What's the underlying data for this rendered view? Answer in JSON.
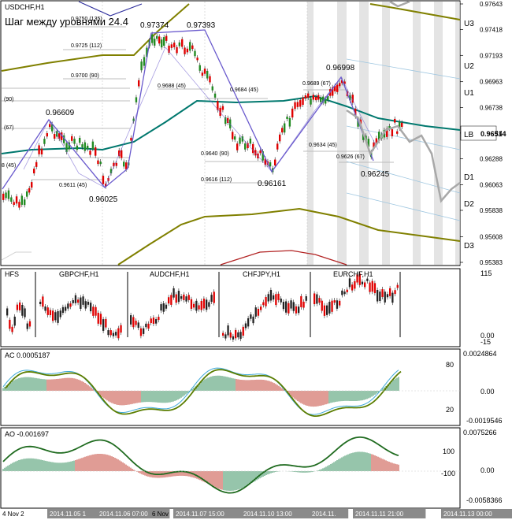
{
  "header": {
    "symbol": "USDCHF,H1",
    "level_step_text": "Шаг между уровнями 24.4"
  },
  "main_chart": {
    "price_axis": [
      "0.97643",
      "0.97418",
      "0.97193",
      "0.96963",
      "0.96738",
      "0.96514",
      "0.96288",
      "0.96063",
      "0.95838",
      "0.95608",
      "0.95383"
    ],
    "current_price": "0.96514",
    "level_labels": [
      "U3",
      "U2",
      "U1",
      "LB",
      "D1",
      "D2",
      "D3"
    ],
    "swing_labels": [
      "0.97374",
      "0.97393",
      "0.96609",
      "0.96025",
      "0.96161",
      "0.96998",
      "0.96245"
    ],
    "fib_labels": [
      "0.9750 (135)",
      "0.9725 (112)",
      "0.9700 (90)",
      "0.9688 (45)",
      "0.9684 (45)",
      "0.9640 (90)",
      "0.9616 (112)",
      "0.9611 (45)",
      "0.9689 (67)",
      "0.9634 (45)",
      "0.9626 (67)",
      "(90)",
      "(67)",
      "8 (45)"
    ]
  },
  "hfs_panel": {
    "title": "HFS",
    "pair_labels": [
      "GBPCHF,H1",
      "AUDCHF,H1",
      "CHFJPY,H1",
      "EURCHF,H1"
    ],
    "axis": [
      "115",
      "0.00",
      "-15"
    ]
  },
  "ac_panel": {
    "title": "AC 0.0005187",
    "axis_right": [
      "0.0024864",
      "0.00",
      "-0.0019546"
    ],
    "axis_left": [
      "80",
      "20"
    ]
  },
  "ao_panel": {
    "title": "AO -0.001697",
    "axis_right": [
      "0.0075266",
      "0.00",
      "-0.0058366"
    ],
    "axis_left": [
      "100",
      "-100"
    ]
  },
  "time_axis": {
    "labels": [
      "4 Nov 2",
      "2014.11.05 1",
      "2014.11.06 07:00",
      "6 Nov",
      "2014.11.07 15:00",
      "2014.11.10 13:00",
      "2014.11.",
      "2014.11.11 21:00",
      "2014.11.13 00:00"
    ]
  }
}
